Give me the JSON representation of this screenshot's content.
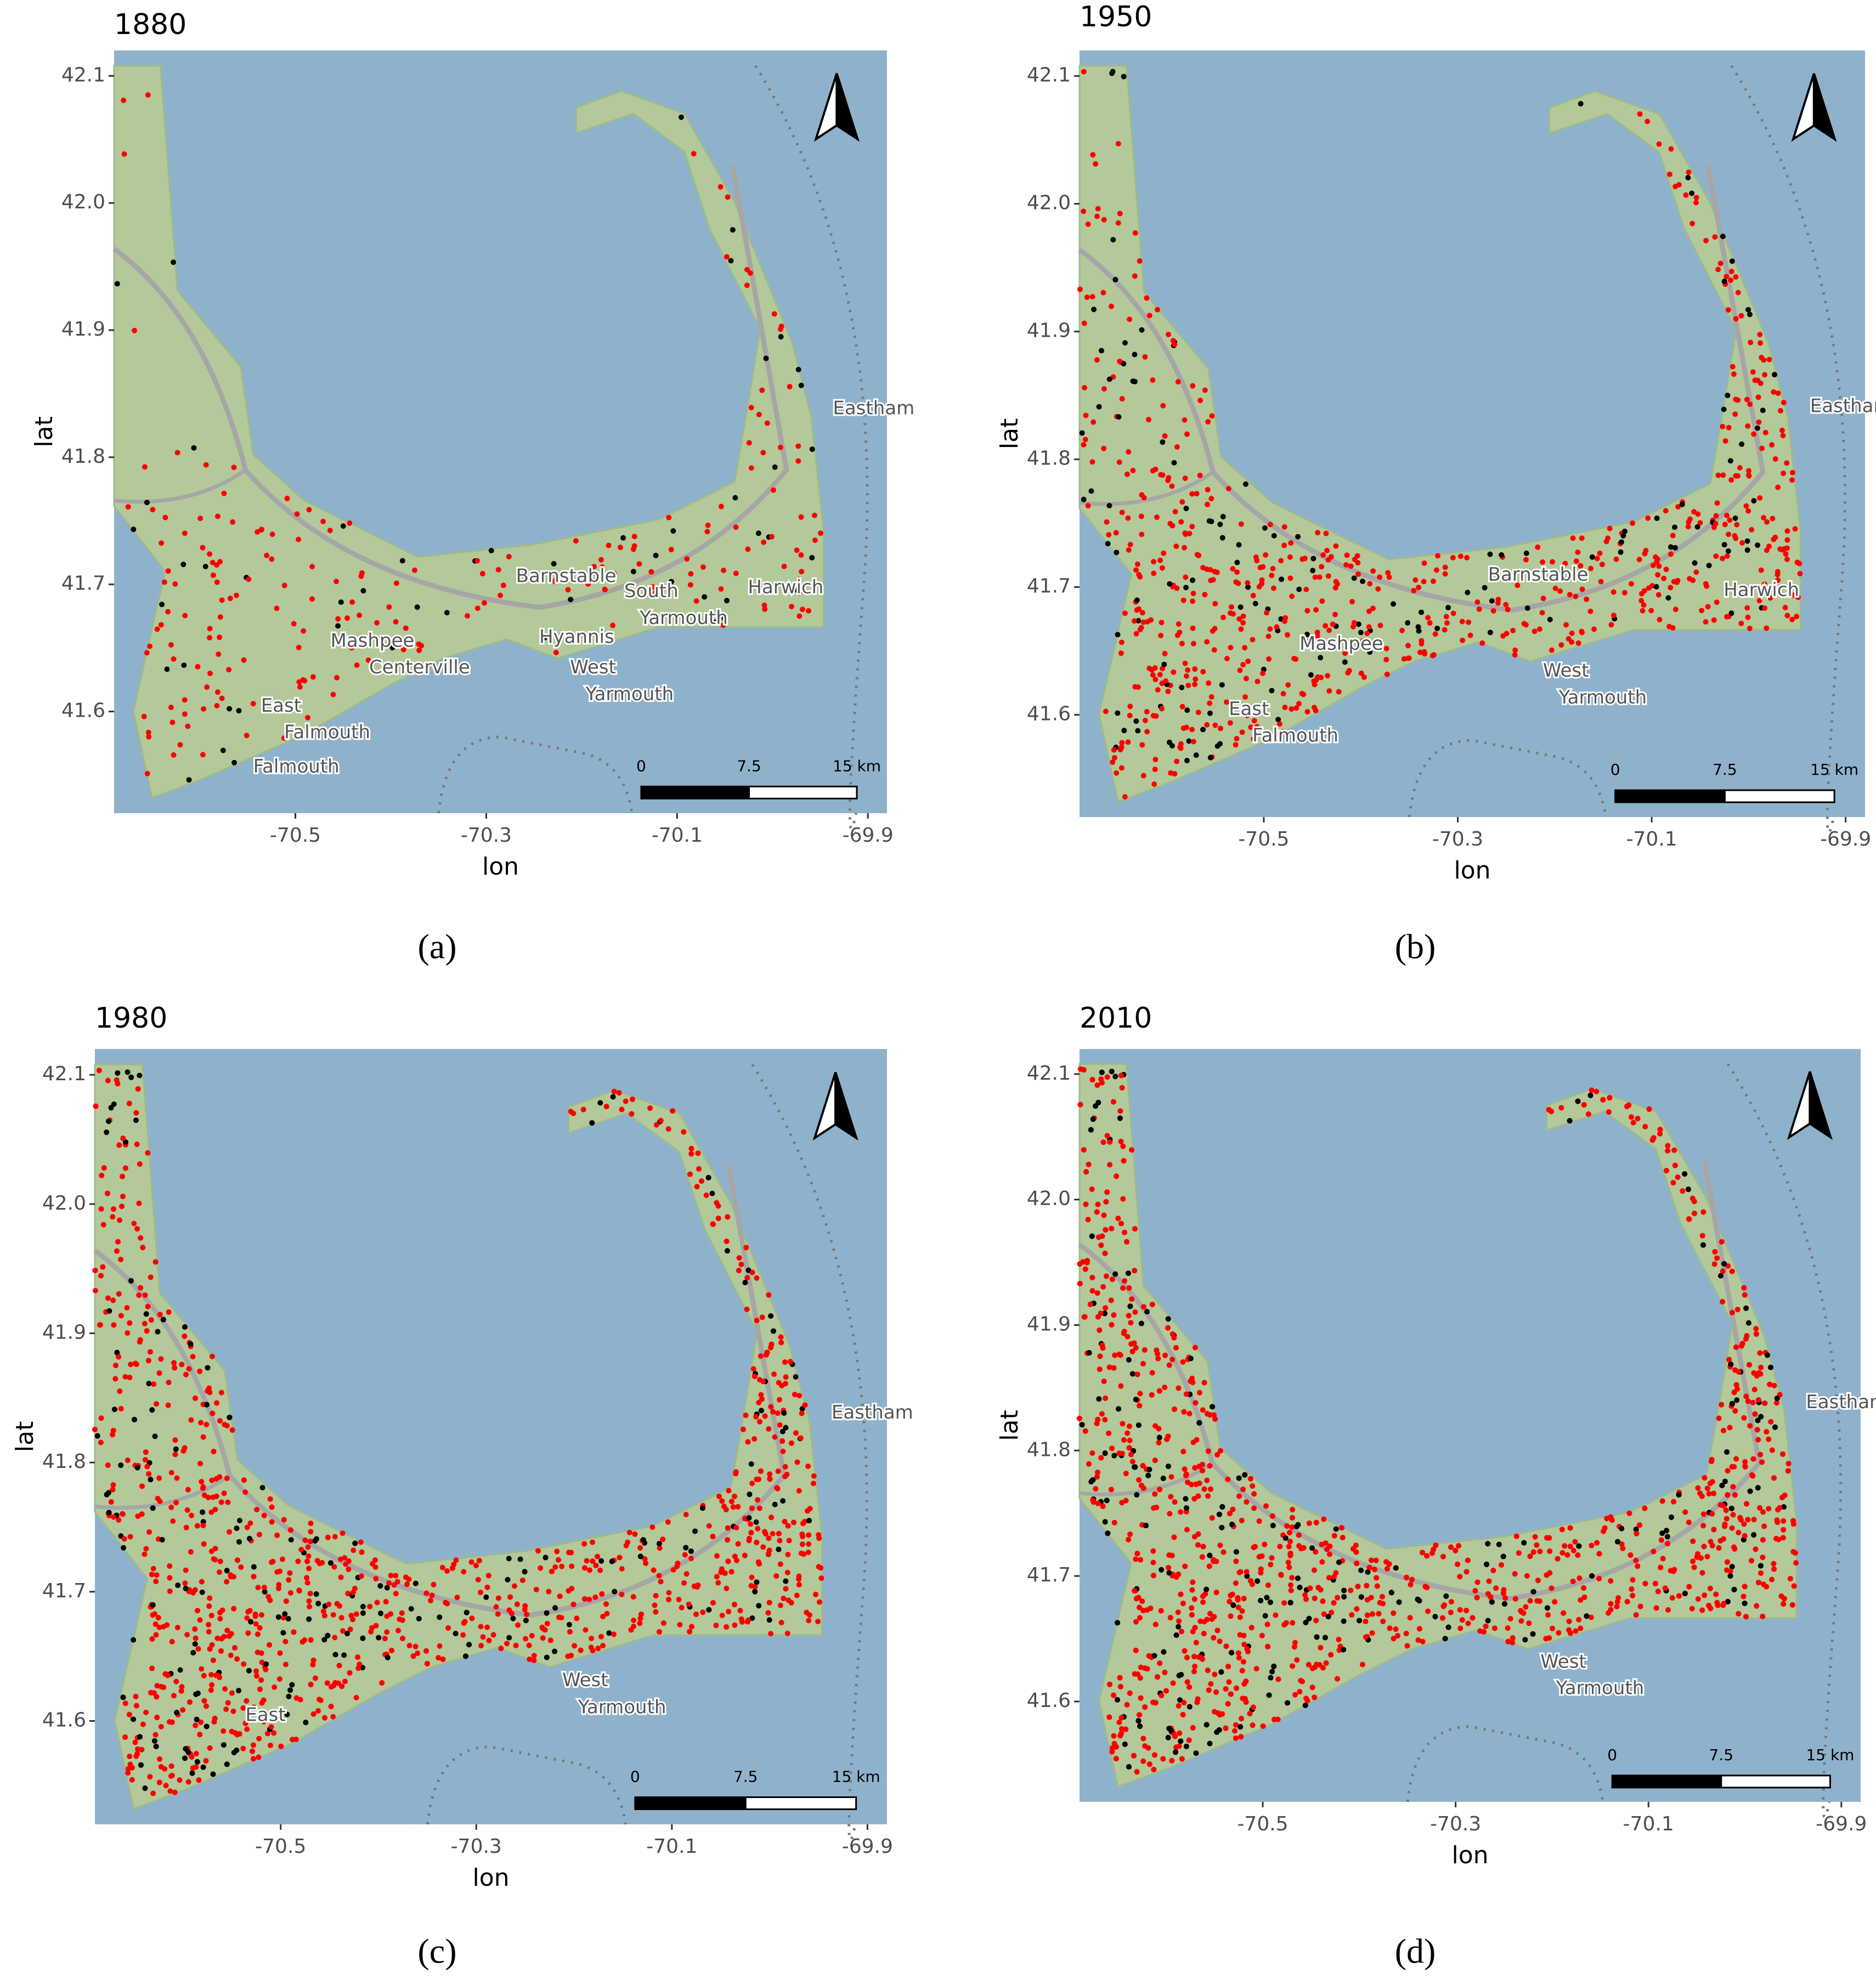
{
  "panels": [
    {
      "title": "1880",
      "caption": "(a)",
      "xlabel": "lon",
      "ylabel": "lat",
      "xlim": [
        -70.69,
        -69.88
      ],
      "ylim": [
        41.52,
        42.12
      ],
      "xticks": [
        -70.5,
        -70.3,
        -70.1,
        -69.9
      ],
      "yticks": [
        41.6,
        41.7,
        41.8,
        41.9,
        {
          "value": 42,
          "label": "42.0"
        },
        42.1
      ],
      "map_labels": [
        "Eastham",
        "Barnstable",
        "South",
        "Yarmouth",
        "Harwich",
        "Hyannis",
        "Mashpee",
        "Centerville",
        "West",
        "Yarmouth",
        "East",
        "Falmouth",
        "Falmouth"
      ],
      "scale_bar": [
        "0",
        "7.5",
        "15 km"
      ]
    },
    {
      "title": "1950",
      "caption": "(b)",
      "xlabel": "lon",
      "ylabel": "lat",
      "xlim": [
        -70.69,
        -69.88
      ],
      "ylim": [
        41.52,
        42.12
      ],
      "xticks": [
        -70.5,
        -70.3,
        -70.1,
        -69.9
      ],
      "yticks": [
        41.6,
        41.7,
        41.8,
        41.9,
        {
          "value": 42,
          "label": "42.0"
        },
        42.1
      ],
      "map_labels": [
        "Eastham",
        "Barnstable",
        "Harwich",
        "Mashpee",
        "East",
        "Falmouth",
        "West",
        "Yarmouth"
      ],
      "scale_bar": [
        "0",
        "7.5",
        "15 km"
      ]
    },
    {
      "title": "1980",
      "caption": "(c)",
      "xlabel": "lon",
      "ylabel": "lat",
      "xlim": [
        -70.69,
        -69.88
      ],
      "ylim": [
        41.52,
        42.12
      ],
      "xticks": [
        -70.5,
        -70.3,
        -70.1,
        -69.9
      ],
      "yticks": [
        41.6,
        41.7,
        41.8,
        41.9,
        {
          "value": 42,
          "label": "42.0"
        },
        42.1
      ],
      "map_labels": [
        "Eastham",
        "West",
        "Yarmouth",
        "East"
      ],
      "scale_bar": [
        "0",
        "7.5",
        "15 km"
      ]
    },
    {
      "title": "2010",
      "caption": "(d)",
      "xlabel": "lon",
      "ylabel": "lat",
      "xlim": [
        -70.69,
        -69.88
      ],
      "ylim": [
        41.52,
        42.12
      ],
      "xticks": [
        -70.5,
        -70.3,
        -70.1,
        -69.9
      ],
      "yticks": [
        41.6,
        41.7,
        41.8,
        41.9,
        {
          "value": 42,
          "label": "42.0"
        },
        42.1
      ],
      "map_labels": [
        "Eastham",
        "West",
        "Yarmouth"
      ],
      "scale_bar": [
        "0",
        "7.5",
        "15 km"
      ]
    }
  ]
}
